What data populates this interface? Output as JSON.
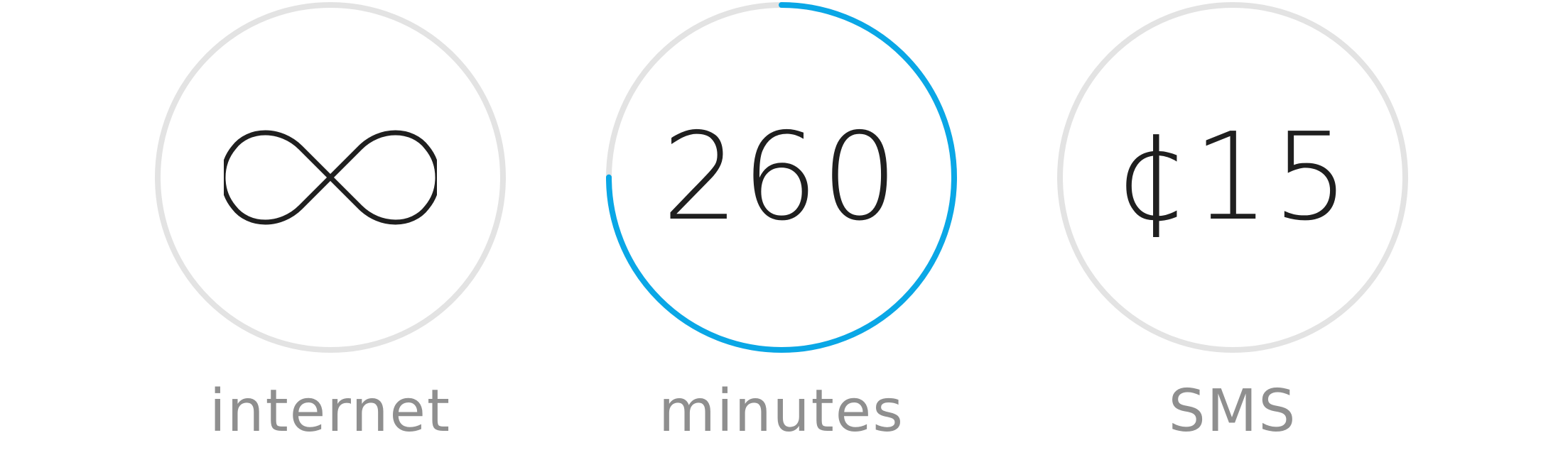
{
  "colors": {
    "ring_track": "#e3e3e3",
    "ring_progress": "#0aa7e6",
    "value_text": "#1f1f1f",
    "label_text": "#8f8f8f"
  },
  "tiles": [
    {
      "label": "internet",
      "value": "",
      "icon": "infinity-icon",
      "progress": 0
    },
    {
      "label": "minutes",
      "value": "260",
      "progress": 0.75
    },
    {
      "label": "SMS",
      "value": "¢15",
      "progress": 0
    }
  ]
}
